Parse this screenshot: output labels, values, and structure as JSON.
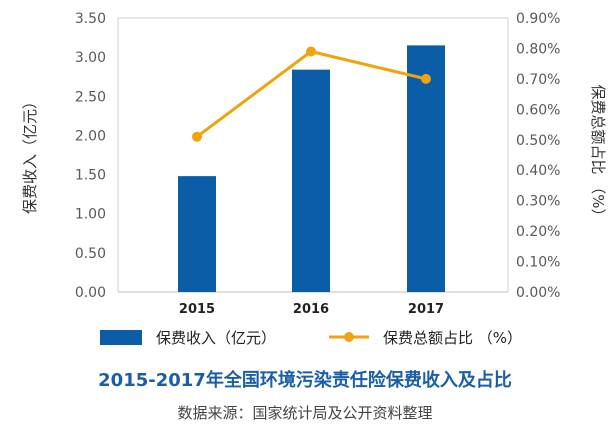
{
  "chart_data": {
    "type": "bar",
    "title": "2015-2017年全国环境污染责任险保费收入及占比",
    "source": "数据来源：国家统计局及公开资料整理",
    "categories": [
      "2015",
      "2016",
      "2017"
    ],
    "series": [
      {
        "name": "保费收入（亿元）",
        "type": "bar",
        "axis": "left",
        "color": "#0a5da6",
        "values": [
          1.48,
          2.84,
          3.15
        ]
      },
      {
        "name": "保费总额占比 （%）",
        "type": "line",
        "axis": "right",
        "color": "#f0a30a",
        "values": [
          0.51,
          0.79,
          0.7
        ]
      }
    ],
    "y_left": {
      "label": "保费收入（亿元）",
      "min": 0,
      "max": 3.5,
      "ticks": [
        "0.00",
        "0.50",
        "1.00",
        "1.50",
        "2.00",
        "2.50",
        "3.00",
        "3.50"
      ]
    },
    "y_right": {
      "label": "保费总额占比 （%）",
      "min": 0,
      "max": 0.9,
      "ticks": [
        "0.00%",
        "0.10%",
        "0.20%",
        "0.30%",
        "0.40%",
        "0.50%",
        "0.60%",
        "0.70%",
        "0.80%",
        "0.90%"
      ]
    },
    "grid": false,
    "legend_position": "bottom"
  }
}
